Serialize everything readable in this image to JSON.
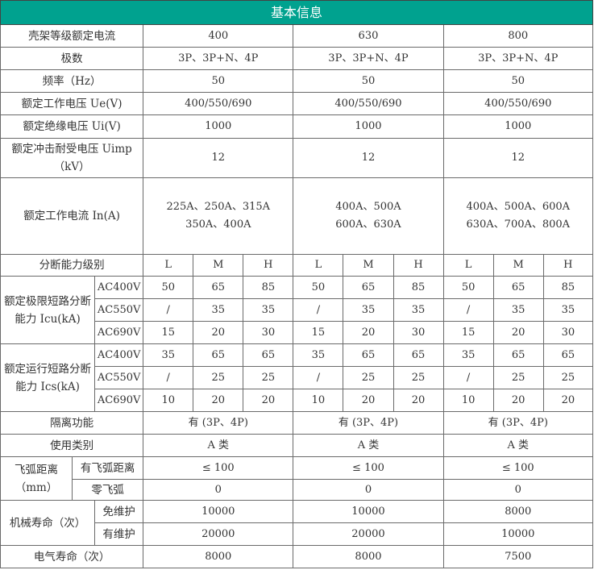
{
  "header": {
    "title": "基本信息"
  },
  "colors": {
    "header_bg": "#00a28f",
    "header_text": "#ffffff",
    "border": "#6a6a6a"
  },
  "rows": [
    {
      "label": "壳架等级额定电流",
      "values": [
        "400",
        "630",
        "800"
      ]
    },
    {
      "label": "极数",
      "values": [
        "3P、3P+N、4P",
        "3P、3P+N、4P",
        "3P、3P+N、4P"
      ]
    },
    {
      "label": "频率（Hz）",
      "values": [
        "50",
        "50",
        "50"
      ]
    },
    {
      "label": "额定工作电压 Ue(V)",
      "values": [
        "400/550/690",
        "400/550/690",
        "400/550/690"
      ]
    },
    {
      "label": "额定绝缘电压 Ui(V)",
      "values": [
        "1000",
        "1000",
        "1000"
      ]
    },
    {
      "label": "额定冲击耐受电压 Uimp（kV）",
      "values": [
        "12",
        "12",
        "12"
      ]
    },
    {
      "label": "额定工作电流 In(A)",
      "values": [
        [
          "225A、250A、315A",
          "350A、400A"
        ],
        [
          "400A、500A",
          "600A、630A"
        ],
        [
          "400A、500A、600A",
          "630A、700A、800A"
        ]
      ]
    }
  ],
  "breaking_levels": {
    "label": "分断能力级别",
    "levels": [
      "L",
      "M",
      "H",
      "L",
      "M",
      "H",
      "L",
      "M",
      "H"
    ]
  },
  "icu": {
    "label": "额定极限短路分断能力 Icu(kA)",
    "rows": [
      {
        "voltage": "AC400V",
        "values": [
          "50",
          "65",
          "85",
          "50",
          "65",
          "85",
          "50",
          "65",
          "85"
        ]
      },
      {
        "voltage": "AC550V",
        "values": [
          "/",
          "35",
          "35",
          "/",
          "35",
          "35",
          "/",
          "35",
          "35"
        ]
      },
      {
        "voltage": "AC690V",
        "values": [
          "15",
          "20",
          "30",
          "15",
          "20",
          "30",
          "15",
          "20",
          "30"
        ]
      }
    ]
  },
  "ics": {
    "label": "额定运行短路分断能力 Ics(kA)",
    "rows": [
      {
        "voltage": "AC400V",
        "values": [
          "35",
          "65",
          "65",
          "35",
          "65",
          "65",
          "35",
          "65",
          "65"
        ]
      },
      {
        "voltage": "AC550V",
        "values": [
          "/",
          "25",
          "25",
          "/",
          "25",
          "25",
          "/",
          "25",
          "25"
        ]
      },
      {
        "voltage": "AC690V",
        "values": [
          "10",
          "20",
          "20",
          "10",
          "20",
          "20",
          "10",
          "20",
          "20"
        ]
      }
    ]
  },
  "isolation": {
    "label": "隔离功能",
    "values": [
      "有 (3P、4P)",
      "有 (3P、4P)",
      "有 (3P、4P)"
    ]
  },
  "category": {
    "label": "使用类别",
    "values": [
      "A 类",
      "A 类",
      "A 类"
    ]
  },
  "arc": {
    "label": "飞弧距离（mm）",
    "rows": [
      {
        "label": "有飞弧距离",
        "values": [
          "≤ 100",
          "≤ 100",
          "≤ 100"
        ]
      },
      {
        "label": "零飞弧",
        "values": [
          "0",
          "0",
          "0"
        ]
      }
    ]
  },
  "mech": {
    "label": "机械寿命（次）",
    "rows": [
      {
        "label": "免维护",
        "values": [
          "10000",
          "10000",
          "8000"
        ]
      },
      {
        "label": "有维护",
        "values": [
          "20000",
          "20000",
          "10000"
        ]
      }
    ]
  },
  "elec": {
    "label": "电气寿命（次）",
    "values": [
      "8000",
      "8000",
      "7500"
    ]
  }
}
